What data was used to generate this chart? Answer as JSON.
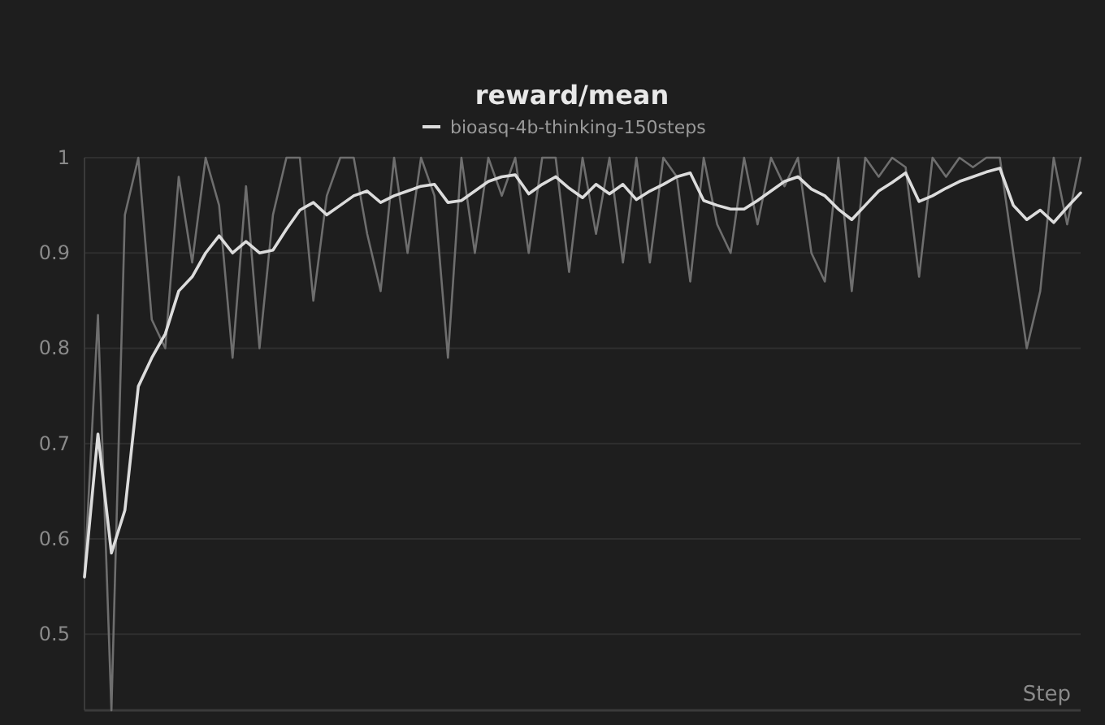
{
  "chart_data": {
    "type": "line",
    "title": "reward/mean",
    "xlabel": "Step",
    "legend": "top",
    "grid": "y",
    "marker": "none",
    "line_style": "solid",
    "tick_labels": "y",
    "categories": [
      null,
      null,
      null,
      null,
      null,
      null,
      null,
      null,
      null,
      null,
      null,
      null,
      null,
      null,
      null,
      null,
      null,
      null,
      null,
      null,
      null,
      null,
      null,
      null,
      null,
      null,
      null,
      null,
      null,
      null,
      null,
      null,
      null,
      null,
      null,
      null,
      null,
      null,
      null,
      null,
      null,
      null,
      null,
      null,
      null,
      null,
      null,
      null,
      null,
      null,
      null,
      null,
      null,
      null,
      null,
      null,
      null,
      null,
      null,
      null,
      null,
      null,
      null,
      null,
      null,
      null,
      null,
      null,
      null,
      null,
      null,
      null,
      null,
      null,
      null
    ],
    "ylim": [
      0.42,
      1
    ],
    "yticks": [
      0.5,
      0.6,
      0.7,
      0.8,
      0.9,
      1
    ],
    "series": [
      {
        "color": "#6e6e6e",
        "values": [
          0.56,
          0.835,
          0.42,
          0.94,
          1.0,
          0.83,
          0.8,
          0.98,
          0.89,
          1.0,
          0.95,
          0.79,
          0.97,
          0.8,
          0.94,
          1.0,
          1.0,
          0.85,
          0.96,
          1.0,
          1.0,
          0.92,
          0.86,
          1.0,
          0.9,
          1.0,
          0.96,
          0.79,
          1.0,
          0.9,
          1.0,
          0.96,
          1.0,
          0.9,
          1.0,
          1.0,
          0.88,
          1.0,
          0.92,
          1.0,
          0.89,
          1.0,
          0.89,
          1.0,
          0.98,
          0.87,
          1.0,
          0.93,
          0.9,
          1.0,
          0.93,
          1.0,
          0.97,
          1.0,
          0.9,
          0.87,
          1.0,
          0.86,
          1.0,
          0.98,
          1.0,
          0.99,
          0.875,
          1.0,
          0.98,
          1.0,
          0.99,
          1.0,
          1.0,
          0.9,
          0.8,
          0.86,
          1.0,
          0.93,
          1.0
        ]
      },
      {
        "name": "bioasq-4b-thinking-150steps",
        "color": "#dcdcdc",
        "values": [
          0.56,
          0.71,
          0.585,
          0.63,
          0.76,
          0.79,
          0.815,
          0.86,
          0.875,
          0.9,
          0.918,
          0.9,
          0.912,
          0.9,
          0.903,
          0.925,
          0.945,
          0.953,
          0.94,
          0.95,
          0.96,
          0.965,
          0.953,
          0.96,
          0.965,
          0.97,
          0.972,
          0.953,
          0.955,
          0.965,
          0.975,
          0.98,
          0.982,
          0.962,
          0.972,
          0.98,
          0.968,
          0.958,
          0.972,
          0.962,
          0.972,
          0.956,
          0.965,
          0.972,
          0.98,
          0.984,
          0.955,
          0.95,
          0.946,
          0.946,
          0.955,
          0.965,
          0.975,
          0.98,
          0.967,
          0.96,
          0.946,
          0.935,
          0.95,
          0.965,
          0.974,
          0.984,
          0.954,
          0.96,
          0.968,
          0.975,
          0.98,
          0.985,
          0.989,
          0.95,
          0.935,
          0.945,
          0.932,
          0.948,
          0.963
        ]
      }
    ]
  }
}
